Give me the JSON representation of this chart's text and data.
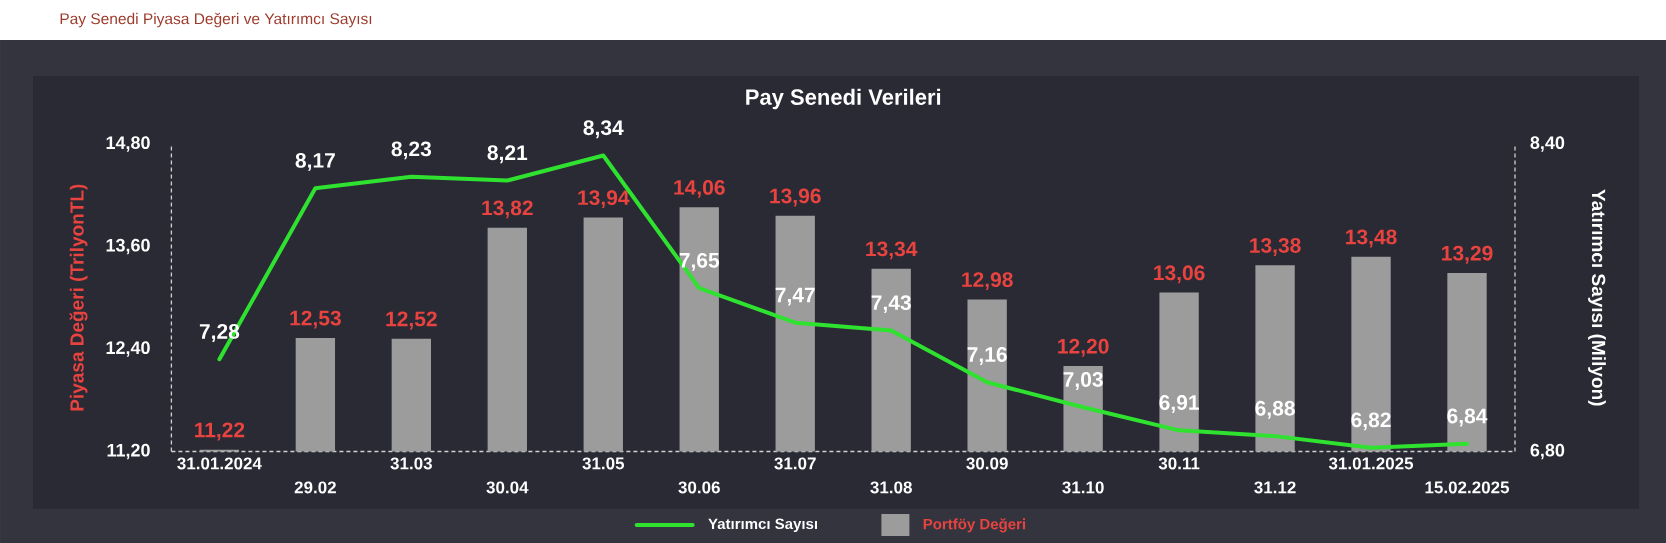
{
  "chart_data": {
    "type": "bar",
    "title": "Pay Senedi Piyasa Değeri ve Yatırımcı Sayısı",
    "subtitle": "Pay Senedi Verileri",
    "ylabel": "Piyasa Değeri (TrilyonTL)",
    "y2label": "Yatırımcı Sayısı (Milyon)",
    "categories": [
      "31.01.2024",
      "29.02",
      "31.03",
      "30.04",
      "31.05",
      "30.06",
      "31.07",
      "31.08",
      "30.09",
      "31.10",
      "30.11",
      "31.12",
      "31.01.2025",
      "15.02.2025"
    ],
    "series": [
      {
        "name": "Yatırımcı Sayısı",
        "type": "line",
        "axis": "y2",
        "color": "#2fe22f",
        "values": [
          7.28,
          8.17,
          8.23,
          8.21,
          8.34,
          7.65,
          7.47,
          7.43,
          7.16,
          7.03,
          6.91,
          6.88,
          6.82,
          6.84
        ],
        "value_labels": [
          "7,28",
          "8,17",
          "8,23",
          "8,21",
          "8,34",
          "7,65",
          "7,47",
          "7,43",
          "7,16",
          "7,03",
          "6,91",
          "6,88",
          "6,82",
          "6,84"
        ]
      },
      {
        "name": "Portföy Değeri",
        "color": "#9c9c9c",
        "values": [
          11.22,
          12.53,
          12.52,
          13.82,
          13.94,
          14.06,
          13.96,
          13.34,
          12.98,
          12.2,
          13.06,
          13.38,
          13.48,
          13.29
        ],
        "value_labels": [
          "11,22",
          "12,53",
          "12,52",
          "13,82",
          "13,94",
          "14,06",
          "13,96",
          "13,34",
          "12,98",
          "12,20",
          "13,06",
          "13,38",
          "13,48",
          "13,29"
        ]
      }
    ],
    "ylim": [
      11.2,
      14.8
    ],
    "yticks": [
      {
        "value": 11.2,
        "label": "11,20"
      },
      {
        "value": 12.4,
        "label": "12,40"
      },
      {
        "value": 13.6,
        "label": "13,60"
      },
      {
        "value": 14.8,
        "label": "14,80"
      }
    ],
    "y2lim": [
      6.8,
      8.4
    ],
    "y2ticks": [
      {
        "value": 6.8,
        "label": "6,80"
      },
      {
        "value": 8.4,
        "label": "8,40"
      }
    ],
    "legend": "bottom",
    "marker": "none",
    "line_style": "solid"
  }
}
